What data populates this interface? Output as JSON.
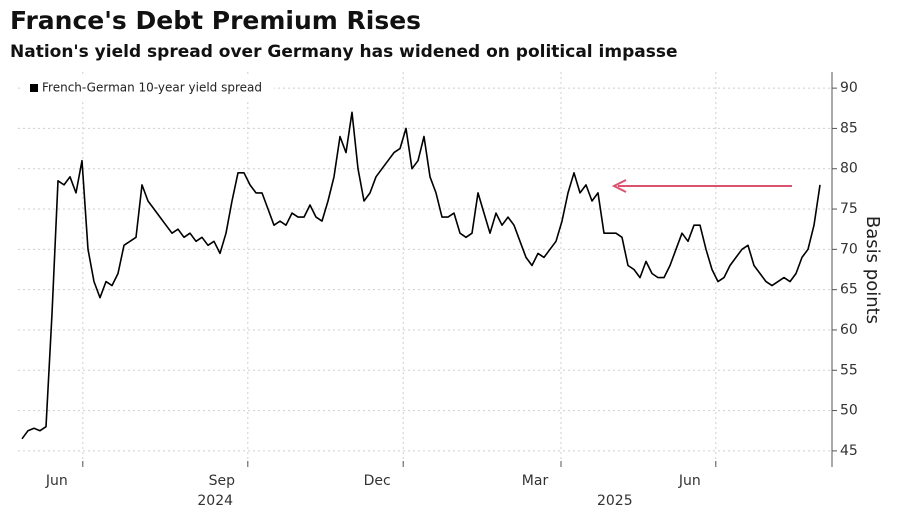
{
  "chart_data": {
    "type": "line",
    "title": "France's Debt Premium Rises",
    "subtitle": "Nation's yield spread over Germany has widened on political impasse",
    "y_axis_label": "Basis points",
    "series": [
      {
        "name": "French-German 10-year yield spread",
        "color": "#000000",
        "values": [
          46.5,
          47.5,
          47.8,
          47.5,
          48,
          62,
          78.5,
          78,
          79,
          77,
          81,
          70,
          66,
          64,
          66,
          65.5,
          67,
          70.5,
          71,
          71.5,
          78,
          76,
          75,
          74,
          73,
          72,
          72.5,
          71.5,
          72,
          71,
          71.5,
          70.5,
          71,
          69.5,
          72,
          76,
          79.5,
          79.5,
          78,
          77,
          77,
          75,
          73,
          73.5,
          73,
          74.5,
          74,
          74,
          75.5,
          74,
          73.5,
          76,
          79,
          84,
          82,
          87,
          80,
          76,
          77,
          79,
          80,
          81,
          82,
          82.5,
          85,
          80,
          81,
          84,
          79,
          77,
          74,
          74,
          74.5,
          72,
          71.5,
          72,
          77,
          74.5,
          72,
          74.5,
          73,
          74,
          73,
          71,
          69,
          68,
          69.5,
          69,
          70,
          71,
          73.5,
          77,
          79.5,
          77,
          78,
          76,
          77,
          72,
          72,
          72,
          71.5,
          68,
          67.5,
          66.5,
          68.5,
          67,
          66.5,
          66.5,
          68,
          70,
          72,
          71,
          73,
          73,
          70,
          67.5,
          66,
          66.5,
          68,
          69,
          70,
          70.5,
          68,
          67,
          66,
          65.5,
          66,
          66.5,
          66,
          67,
          69,
          70,
          73,
          78
        ]
      }
    ],
    "xlim": [
      0,
      133
    ],
    "xticks": [
      {
        "value": 5.8,
        "label": "Jun"
      },
      {
        "value": 33.3,
        "label": "Sep"
      },
      {
        "value": 59.2,
        "label": "Dec"
      },
      {
        "value": 85.5,
        "label": "Mar"
      },
      {
        "value": 111.3,
        "label": "Jun"
      }
    ],
    "year_ticks": [
      {
        "value": 32.2,
        "label": "2024"
      },
      {
        "value": 98.8,
        "label": "2025"
      }
    ],
    "ylim": [
      43,
      92
    ],
    "yticks": [
      45,
      50,
      55,
      60,
      65,
      70,
      75,
      80,
      85,
      90
    ],
    "grid": true,
    "legend": "top-left"
  }
}
